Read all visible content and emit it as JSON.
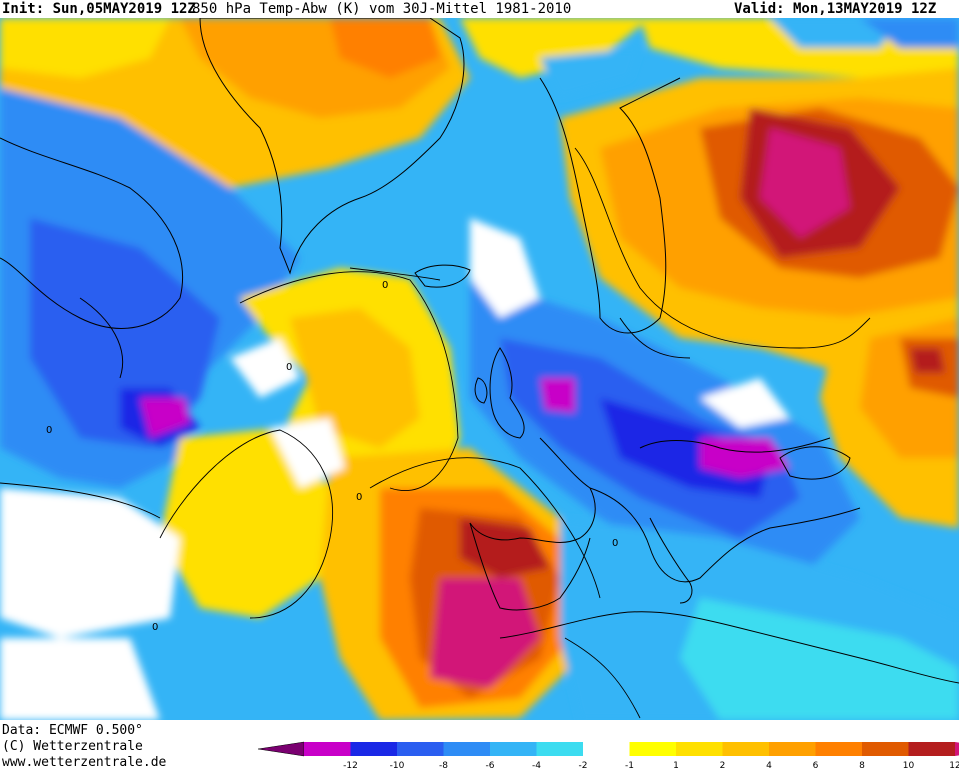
{
  "header": {
    "init": "Init: Sun,05MAY2019 12Z",
    "parameter": "850 hPa Temp-Abw (K) vom 30J-Mittel 1981-2010",
    "valid": "Valid: Mon,13MAY2019 12Z"
  },
  "footer": {
    "data_source": "Data: ECMWF  0.500°",
    "copyright": "(C) Wetterzentrale",
    "url": "www.wetterzentrale.de"
  },
  "map": {
    "contour_label": "0",
    "region": "North Atlantic and Europe"
  },
  "legend": {
    "bins": [
      {
        "color": "#7a0070"
      },
      {
        "color": "#c800c8"
      },
      {
        "color": "#1a28e6"
      },
      {
        "color": "#2a5ef0"
      },
      {
        "color": "#2e8cf5"
      },
      {
        "color": "#34b4f6"
      },
      {
        "color": "#3cdcf0"
      },
      {
        "color": "#ffffff"
      },
      {
        "color": "#ffff00"
      },
      {
        "color": "#ffe000"
      },
      {
        "color": "#ffc000"
      },
      {
        "color": "#ffa000"
      },
      {
        "color": "#ff8000"
      },
      {
        "color": "#e05a00"
      },
      {
        "color": "#b41e1e"
      },
      {
        "color": "#d21478"
      }
    ],
    "ticks": [
      "-12",
      "-10",
      "-8",
      "-6",
      "-4",
      "-2",
      "-1",
      "1",
      "2",
      "4",
      "6",
      "8",
      "10",
      "12"
    ]
  }
}
